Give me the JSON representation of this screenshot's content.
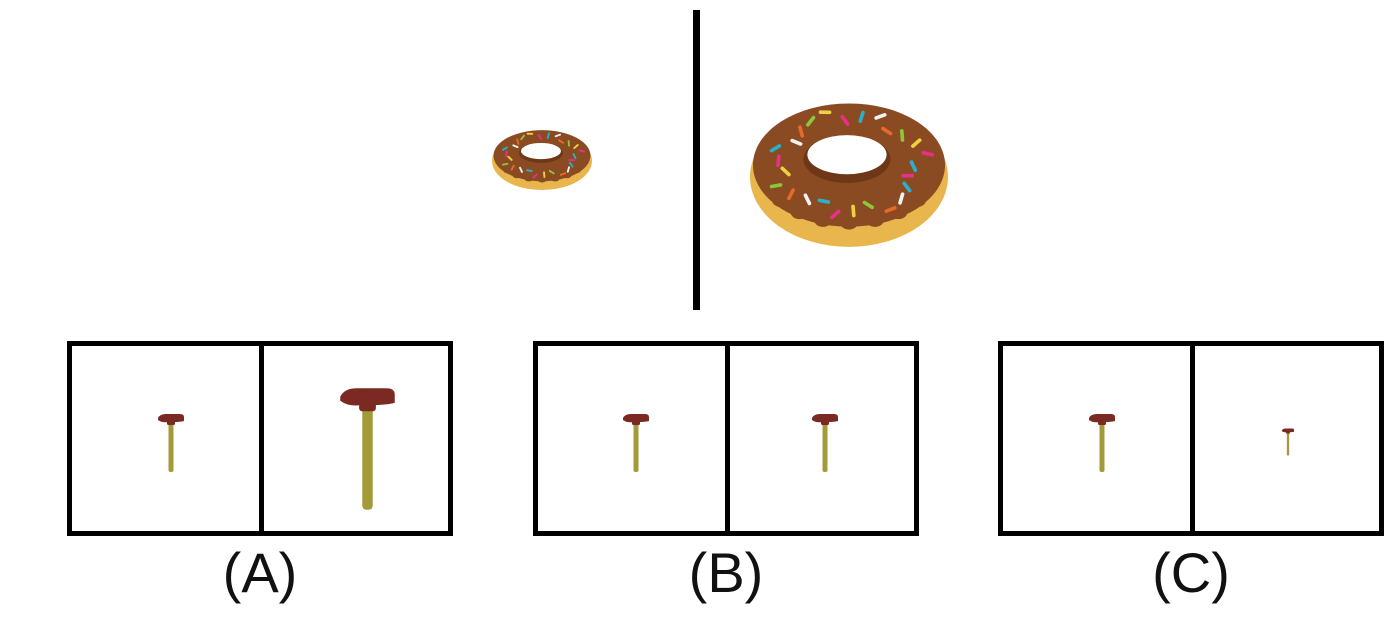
{
  "reference": {
    "left_object": "donut-small",
    "right_object": "donut-large",
    "colors": {
      "dough": "#e8b64c",
      "icing": "#8a4a22",
      "icing_dark": "#6e3818"
    }
  },
  "options": [
    {
      "label": "(A)",
      "left_object": "hammer",
      "right_object": "hammer",
      "right_scale": 2.1
    },
    {
      "label": "(B)",
      "left_object": "hammer",
      "right_object": "hammer",
      "right_scale": 1.0
    },
    {
      "label": "(C)",
      "left_object": "hammer",
      "right_object": "hammer",
      "right_scale": 0.5
    }
  ],
  "hammer_colors": {
    "head": "#7a2a22",
    "handle": "#a39a3a"
  },
  "sprinkle_colors": [
    "#e8308a",
    "#2ab0c8",
    "#f2f2f2",
    "#e86a2a",
    "#8ac83a",
    "#f0d040"
  ]
}
